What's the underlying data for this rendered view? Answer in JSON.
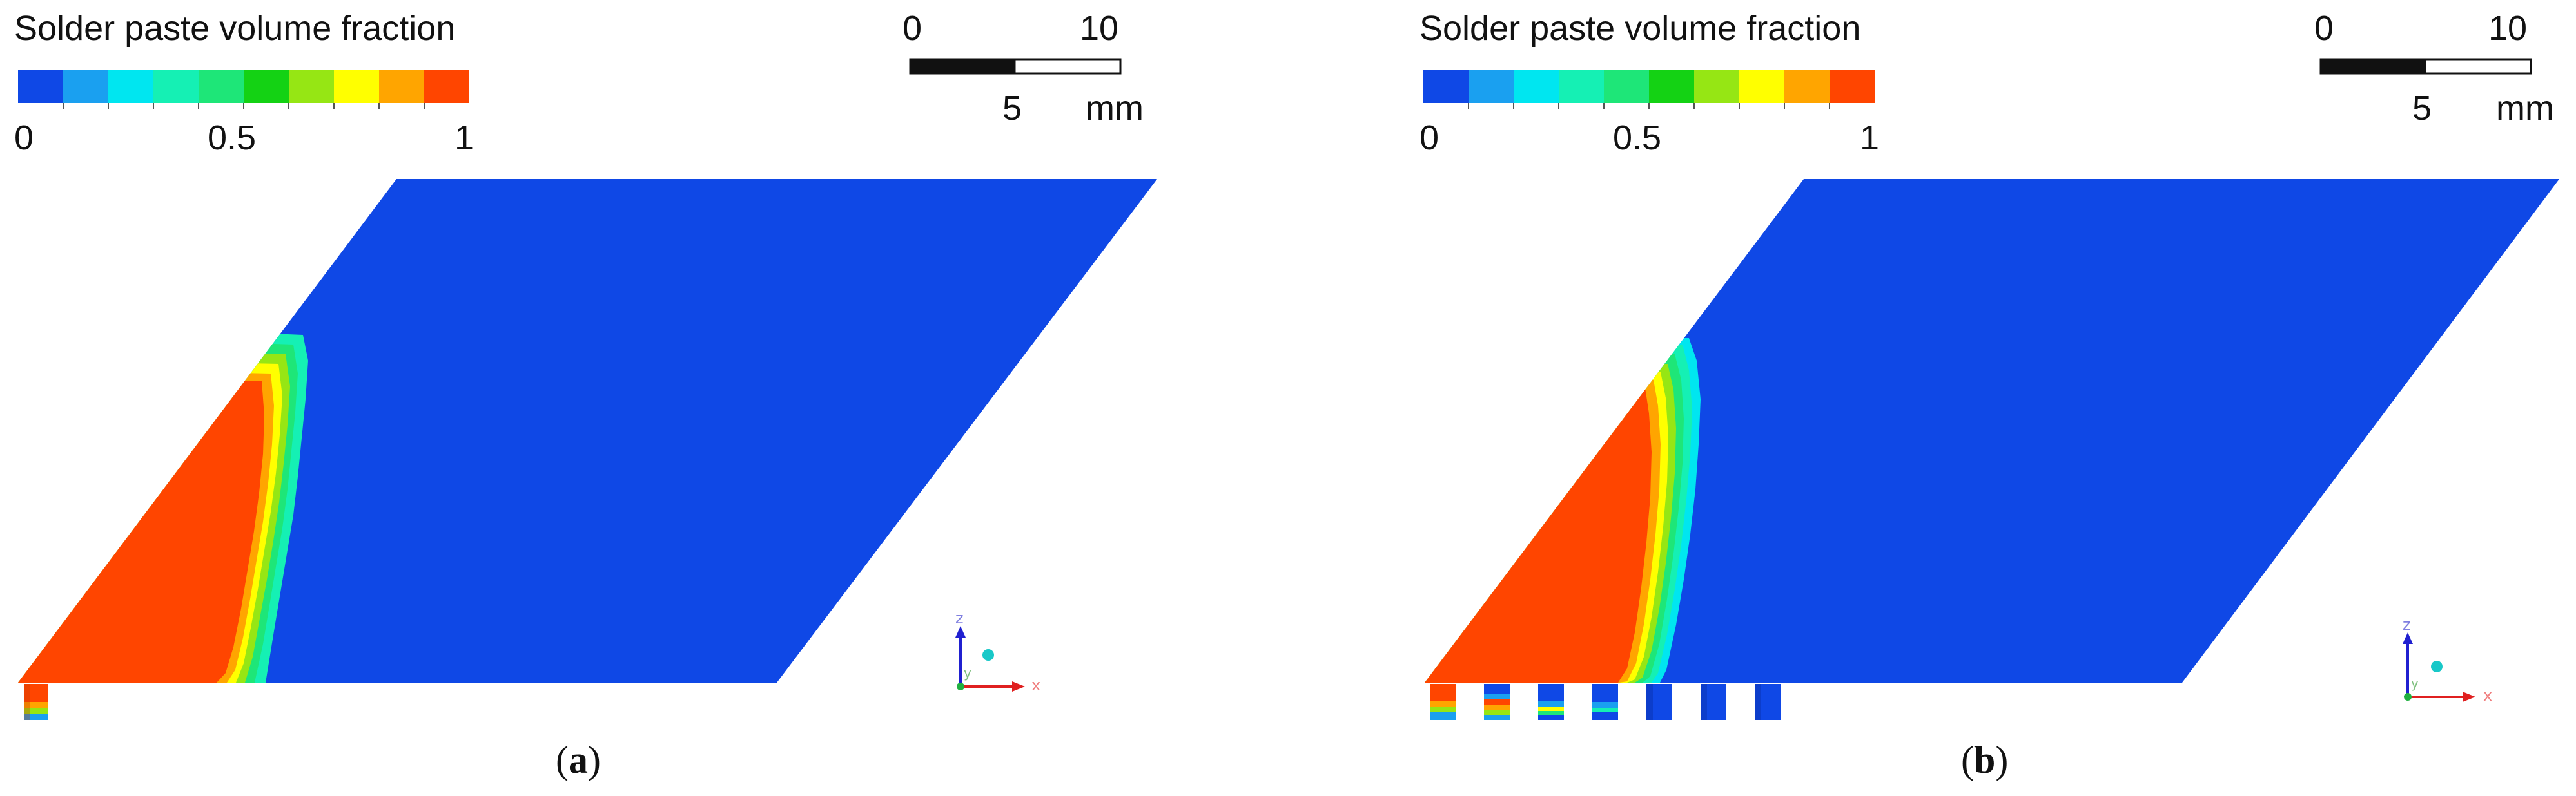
{
  "colors": {
    "low": "#0f48e6",
    "high": "#ff4500",
    "axis_x": "#e02020",
    "axis_z": "#2020d0",
    "axis_y": "#20b040",
    "sphere": "#18c8c8"
  },
  "colorbar": {
    "colors": [
      "#0f48e6",
      "#1aa0f0",
      "#00e6f0",
      "#15f0b4",
      "#1ee678",
      "#14d214",
      "#96e614",
      "#ffff00",
      "#ffa500",
      "#ff4500"
    ],
    "tick_labels": [
      "0",
      "0.5",
      "1"
    ]
  },
  "panels": [
    {
      "id": "a",
      "title": "Solder paste volume fraction",
      "scale": {
        "left_label": "0",
        "right_label": "10",
        "mid_label": "5",
        "unit": "mm"
      },
      "axes": {
        "x": "x",
        "y": "y",
        "z": "z"
      },
      "caption": {
        "open": "(",
        "letter": "a",
        "close": ")"
      },
      "apertures_filled": 1
    },
    {
      "id": "b",
      "title": "Solder paste volume fraction",
      "scale": {
        "left_label": "0",
        "right_label": "10",
        "mid_label": "5",
        "unit": "mm"
      },
      "axes": {
        "x": "x",
        "y": "y",
        "z": "z"
      },
      "caption": {
        "open": "(",
        "letter": "b",
        "close": ")"
      },
      "apertures_filled": 7
    }
  ]
}
